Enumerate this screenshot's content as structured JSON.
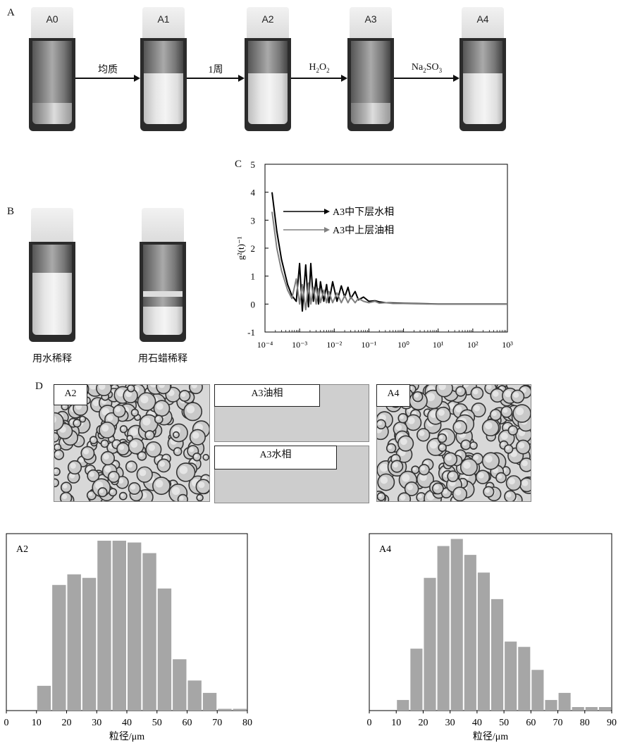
{
  "panels": {
    "a": "A",
    "b": "B",
    "c": "C",
    "d": "D"
  },
  "panel_a": {
    "vials": [
      "A0",
      "A1",
      "A2",
      "A3",
      "A4"
    ],
    "steps": [
      "均质",
      "1周",
      "H2O2",
      "Na2SO3"
    ],
    "vial_states": [
      "clear",
      "milky",
      "milky",
      "clear",
      "milky"
    ]
  },
  "panel_b": {
    "captions": [
      "用水稀释",
      "用石蜡稀释"
    ]
  },
  "panel_d": {
    "labels": [
      "A2",
      "A3油相",
      "A3水相",
      "A4"
    ]
  },
  "colors": {
    "bar": "#a6a6a6",
    "line_black": "#000000",
    "line_gray": "#808080"
  },
  "chart_data": [
    {
      "type": "line",
      "panel": "C",
      "ylabel": "g²(t)⁻¹",
      "xscale": "log",
      "xlim": [
        0.0001,
        1000
      ],
      "ylim": [
        -1,
        5
      ],
      "yticks": [
        -1,
        0,
        1,
        2,
        3,
        4,
        5
      ],
      "xtick_labels": [
        "10⁻⁴",
        "10⁻³",
        "10⁻²",
        "10⁻¹",
        "10⁰",
        "10¹",
        "10²",
        "10³"
      ],
      "legend_placement": "top-center",
      "series": [
        {
          "name": "A3中下层水相",
          "color": "#000000",
          "x": [
            0.00016,
            0.00022,
            0.0003,
            0.00045,
            0.0006,
            0.0008,
            0.001,
            0.0012,
            0.0015,
            0.0018,
            0.0021,
            0.0025,
            0.003,
            0.0035,
            0.004,
            0.005,
            0.006,
            0.007,
            0.009,
            0.012,
            0.016,
            0.02,
            0.025,
            0.03,
            0.04,
            0.05,
            0.07,
            0.1,
            0.15,
            0.2,
            0.3,
            0.5,
            1,
            2,
            5,
            10,
            100,
            1000
          ],
          "y": [
            4.0,
            2.6,
            1.6,
            0.7,
            0.3,
            0.1,
            1.45,
            -0.25,
            1.4,
            -0.1,
            1.45,
            0.1,
            0.9,
            0.0,
            0.8,
            0.1,
            0.7,
            0.05,
            0.8,
            0.1,
            0.65,
            0.25,
            0.6,
            0.2,
            0.45,
            0.15,
            0.25,
            0.1,
            0.12,
            0.08,
            0.05,
            0.04,
            0.03,
            0.02,
            0.01,
            0.0,
            0.0,
            0.0
          ]
        },
        {
          "name": "A3中上层油相",
          "color": "#808080",
          "x": [
            0.00016,
            0.00022,
            0.0003,
            0.00045,
            0.0006,
            0.0008,
            0.001,
            0.0012,
            0.0015,
            0.0018,
            0.0021,
            0.0025,
            0.003,
            0.0035,
            0.004,
            0.005,
            0.006,
            0.007,
            0.009,
            0.012,
            0.016,
            0.02,
            0.025,
            0.03,
            0.04,
            0.05,
            0.07,
            0.1,
            0.15,
            0.2,
            0.3,
            0.5,
            1,
            2,
            5,
            10,
            100,
            1000
          ],
          "y": [
            3.3,
            2.0,
            1.2,
            0.5,
            0.2,
            0.9,
            0.0,
            0.7,
            -0.2,
            0.75,
            0.0,
            0.6,
            0.0,
            0.55,
            0.05,
            0.5,
            0.05,
            0.45,
            0.05,
            0.4,
            0.05,
            0.3,
            0.05,
            0.25,
            0.05,
            0.2,
            0.1,
            0.05,
            0.1,
            0.03,
            0.05,
            0.02,
            0.02,
            0.01,
            0.0,
            0.0,
            0.0,
            0.0
          ]
        }
      ]
    },
    {
      "type": "bar",
      "title": "A2",
      "xlabel": "粒径/μm",
      "xlim": [
        0,
        80
      ],
      "xticks": [
        0,
        10,
        20,
        30,
        40,
        50,
        60,
        70,
        80
      ],
      "bin_width": 5,
      "bin_starts": [
        10,
        15,
        20,
        25,
        30,
        35,
        40,
        45,
        50,
        55,
        60,
        65,
        70,
        75
      ],
      "values": [
        0.14,
        0.71,
        0.77,
        0.75,
        0.96,
        0.96,
        0.95,
        0.89,
        0.69,
        0.29,
        0.17,
        0.1,
        0.01,
        0.01
      ]
    },
    {
      "type": "bar",
      "title": "A4",
      "xlabel": "粒径/μm",
      "xlim": [
        0,
        90
      ],
      "xticks": [
        0,
        10,
        20,
        30,
        40,
        50,
        60,
        70,
        80,
        90
      ],
      "bin_width": 5,
      "bin_starts": [
        10,
        15,
        20,
        25,
        30,
        35,
        40,
        45,
        50,
        55,
        60,
        65,
        70,
        75,
        80,
        85
      ],
      "values": [
        0.06,
        0.35,
        0.75,
        0.93,
        0.97,
        0.88,
        0.78,
        0.63,
        0.39,
        0.36,
        0.23,
        0.06,
        0.1,
        0.02,
        0.02,
        0.02
      ]
    }
  ]
}
